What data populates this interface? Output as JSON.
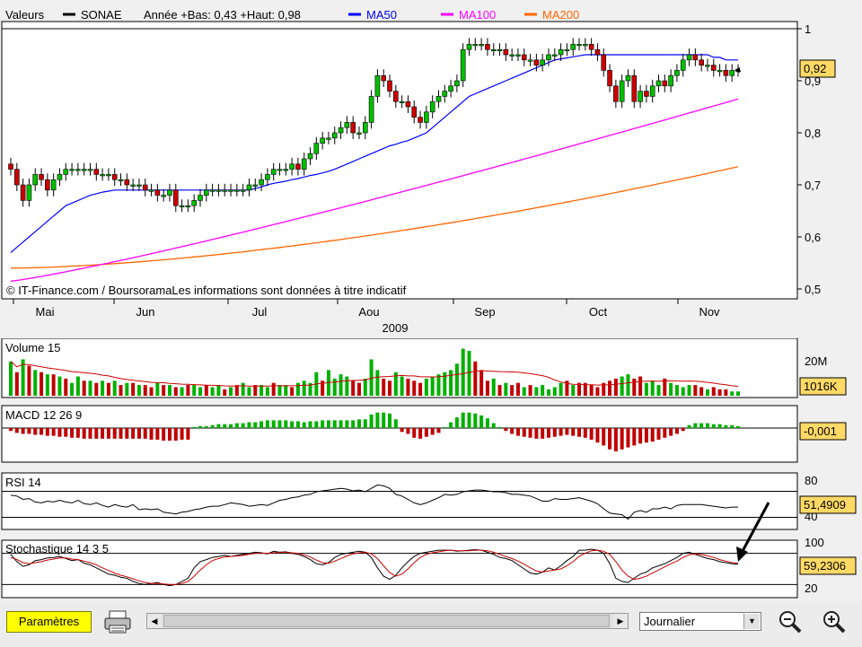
{
  "colors": {
    "price": "#000000",
    "ma50": "#0000ff",
    "ma100": "#ff00ff",
    "ma200": "#ff6600",
    "up_volume": "#00b000",
    "down_volume": "#c00000",
    "label_bg": "#ffd966"
  },
  "toolbar": {
    "params_label": "Paramètres",
    "period_value": "Journalier",
    "print_icon": "printer-icon",
    "zoom_out_icon": "zoom-out-icon",
    "zoom_in_icon": "zoom-in-icon",
    "scroll_left_icon": "arrow-left-icon",
    "scroll_right_icon": "arrow-right-icon"
  },
  "chart_data": [
    {
      "type": "candlestick",
      "title": "Valeurs",
      "legend": [
        {
          "name": "SONAE",
          "color": "#000000"
        },
        {
          "name": "Année +Bas: 0,43 +Haut: 0,98",
          "color": "#000000"
        },
        {
          "name": "MA50",
          "color": "#0000ff"
        },
        {
          "name": "MA100",
          "color": "#ff00ff"
        },
        {
          "name": "MA200",
          "color": "#ff6600"
        }
      ],
      "ylim": [
        0.5,
        1.0
      ],
      "yticks": [
        "0,5",
        "0,6",
        "0,7",
        "0,8",
        "0,9",
        "1"
      ],
      "xticks": [
        "Mai",
        "Jun",
        "Jul",
        "Aou",
        "Sep",
        "Oct",
        "Nov"
      ],
      "year_label": "2009",
      "last_label": "0,92",
      "watermark": "© IT-Finance.com / BoursoramaLes informations sont données à titre indicatif",
      "close": [
        0.73,
        0.7,
        0.67,
        0.7,
        0.72,
        0.71,
        0.69,
        0.71,
        0.72,
        0.73,
        0.73,
        0.73,
        0.73,
        0.73,
        0.72,
        0.72,
        0.72,
        0.71,
        0.71,
        0.7,
        0.7,
        0.7,
        0.69,
        0.69,
        0.68,
        0.68,
        0.69,
        0.66,
        0.66,
        0.66,
        0.67,
        0.68,
        0.69,
        0.69,
        0.69,
        0.69,
        0.69,
        0.69,
        0.69,
        0.7,
        0.7,
        0.71,
        0.72,
        0.73,
        0.73,
        0.73,
        0.74,
        0.73,
        0.75,
        0.76,
        0.78,
        0.79,
        0.79,
        0.8,
        0.81,
        0.82,
        0.8,
        0.8,
        0.82,
        0.87,
        0.91,
        0.9,
        0.88,
        0.86,
        0.86,
        0.85,
        0.83,
        0.82,
        0.84,
        0.86,
        0.87,
        0.88,
        0.89,
        0.9,
        0.96,
        0.97,
        0.97,
        0.97,
        0.96,
        0.96,
        0.96,
        0.95,
        0.95,
        0.95,
        0.94,
        0.94,
        0.93,
        0.94,
        0.95,
        0.95,
        0.96,
        0.96,
        0.97,
        0.97,
        0.97,
        0.96,
        0.95,
        0.92,
        0.89,
        0.86,
        0.9,
        0.91,
        0.86,
        0.88,
        0.87,
        0.89,
        0.9,
        0.89,
        0.91,
        0.92,
        0.94,
        0.95,
        0.94,
        0.93,
        0.93,
        0.92,
        0.92,
        0.91,
        0.92,
        0.92
      ],
      "ma50": [
        0.57,
        0.58,
        0.59,
        0.6,
        0.61,
        0.62,
        0.63,
        0.64,
        0.65,
        0.66,
        0.665,
        0.67,
        0.675,
        0.68,
        0.683,
        0.686,
        0.688,
        0.69,
        0.69,
        0.69,
        0.69,
        0.69,
        0.69,
        0.69,
        0.69,
        0.69,
        0.69,
        0.69,
        0.69,
        0.69,
        0.69,
        0.69,
        0.69,
        0.69,
        0.69,
        0.69,
        0.69,
        0.69,
        0.69,
        0.69,
        0.693,
        0.696,
        0.7,
        0.703,
        0.705,
        0.707,
        0.71,
        0.712,
        0.715,
        0.718,
        0.72,
        0.723,
        0.726,
        0.73,
        0.735,
        0.74,
        0.745,
        0.75,
        0.755,
        0.76,
        0.765,
        0.77,
        0.775,
        0.778,
        0.782,
        0.785,
        0.79,
        0.795,
        0.8,
        0.81,
        0.82,
        0.83,
        0.84,
        0.85,
        0.86,
        0.87,
        0.875,
        0.88,
        0.885,
        0.89,
        0.895,
        0.9,
        0.905,
        0.91,
        0.915,
        0.92,
        0.925,
        0.93,
        0.935,
        0.94,
        0.942,
        0.944,
        0.946,
        0.948,
        0.95,
        0.95,
        0.95,
        0.95,
        0.95,
        0.95,
        0.95,
        0.95,
        0.95,
        0.95,
        0.95,
        0.95,
        0.95,
        0.95,
        0.95,
        0.95,
        0.95,
        0.95,
        0.95,
        0.95,
        0.95,
        0.945,
        0.945,
        0.94,
        0.94,
        0.94
      ],
      "ma100_range": [
        0.515,
        0.865
      ],
      "ma200_range": [
        0.54,
        0.735
      ]
    },
    {
      "type": "bar",
      "title": "Volume 15",
      "ticks": [
        "20M"
      ],
      "last_label": "1016K",
      "values": [
        16,
        11,
        17,
        14,
        12,
        11,
        10,
        10,
        9,
        8,
        6,
        9,
        7,
        7,
        6,
        7,
        6,
        7,
        5,
        6,
        6,
        5,
        5,
        4,
        6,
        5,
        5,
        4,
        4,
        5,
        5,
        4,
        5,
        4,
        5,
        3,
        4,
        5,
        6,
        4,
        5,
        5,
        4,
        6,
        5,
        5,
        4,
        6,
        7,
        6,
        11,
        7,
        12,
        8,
        10,
        9,
        7,
        6,
        8,
        17,
        12,
        8,
        7,
        11,
        9,
        8,
        7,
        6,
        8,
        9,
        10,
        11,
        12,
        15,
        22,
        21,
        16,
        12,
        7,
        8,
        5,
        6,
        5,
        6,
        4,
        5,
        4,
        5,
        3,
        4,
        6,
        7,
        5,
        6,
        6,
        5,
        4,
        6,
        7,
        8,
        9,
        10,
        8,
        9,
        6,
        7,
        5,
        8,
        6,
        5,
        4,
        5,
        5,
        4,
        3,
        4,
        3,
        3,
        2,
        2
      ],
      "up": [
        1,
        0,
        1,
        0,
        1,
        0,
        1,
        0,
        1,
        0,
        1,
        1,
        0,
        1,
        0,
        1,
        0,
        1,
        0,
        1,
        0,
        1,
        0,
        0,
        1,
        0,
        1,
        0,
        1,
        0,
        1,
        1,
        0,
        1,
        1,
        0,
        1,
        0,
        1,
        1,
        0,
        1,
        1,
        0,
        1,
        1,
        0,
        1,
        1,
        1,
        1,
        0,
        1,
        1,
        1,
        1,
        0,
        0,
        1,
        1,
        1,
        0,
        0,
        1,
        1,
        0,
        0,
        0,
        1,
        1,
        1,
        1,
        1,
        1,
        1,
        1,
        0,
        0,
        0,
        1,
        0,
        1,
        0,
        0,
        1,
        0,
        1,
        1,
        1,
        1,
        1,
        0,
        1,
        0,
        0,
        0,
        0,
        0,
        0,
        0,
        1,
        1,
        0,
        0,
        1,
        1,
        1,
        0,
        1,
        1,
        1,
        1,
        0,
        0,
        1,
        0,
        0,
        0,
        1,
        1
      ]
    },
    {
      "type": "bar",
      "title": "MACD 12 26 9",
      "last_label": "-0,001",
      "values": [
        -0.003,
        -0.005,
        -0.006,
        -0.006,
        -0.007,
        -0.007,
        -0.008,
        -0.008,
        -0.009,
        -0.009,
        -0.01,
        -0.01,
        -0.011,
        -0.011,
        -0.011,
        -0.011,
        -0.011,
        -0.011,
        -0.011,
        -0.011,
        -0.011,
        -0.011,
        -0.011,
        -0.012,
        -0.012,
        -0.013,
        -0.013,
        -0.013,
        -0.012,
        -0.012,
        0.001,
        0.002,
        0.002,
        0.003,
        0.004,
        0.004,
        0.004,
        0.005,
        0.005,
        0.006,
        0.006,
        0.007,
        0.008,
        0.008,
        0.008,
        0.008,
        0.007,
        0.007,
        0.006,
        0.007,
        0.007,
        0.008,
        0.008,
        0.008,
        0.008,
        0.008,
        0.008,
        0.009,
        0.009,
        0.014,
        0.016,
        0.016,
        0.015,
        0.009,
        -0.004,
        -0.006,
        -0.01,
        -0.011,
        -0.009,
        -0.007,
        -0.005,
        0.001,
        0.006,
        0.011,
        0.016,
        0.016,
        0.015,
        0.013,
        0.01,
        0.005,
        0.001,
        -0.003,
        -0.006,
        -0.008,
        -0.009,
        -0.01,
        -0.011,
        -0.011,
        -0.01,
        -0.009,
        -0.008,
        -0.007,
        -0.008,
        -0.009,
        -0.01,
        -0.012,
        -0.015,
        -0.018,
        -0.022,
        -0.024,
        -0.022,
        -0.02,
        -0.018,
        -0.016,
        -0.015,
        -0.014,
        -0.012,
        -0.01,
        -0.008,
        -0.006,
        -0.003,
        0.003,
        0.005,
        0.005,
        0.005,
        0.004,
        0.004,
        0.003,
        0.003,
        0.002
      ]
    },
    {
      "type": "line",
      "title": "RSI 14",
      "ylim": [
        30,
        90
      ],
      "ticks": [
        "80",
        "40"
      ],
      "last_label": "51,4909",
      "values": [
        66,
        65,
        61,
        62,
        58,
        57,
        59,
        58,
        60,
        58,
        57,
        60,
        56,
        55,
        57,
        54,
        52,
        55,
        53,
        52,
        55,
        49,
        50,
        49,
        50,
        46,
        45,
        44,
        46,
        47,
        49,
        50,
        52,
        53,
        53,
        55,
        57,
        56,
        55,
        53,
        54,
        55,
        54,
        57,
        60,
        61,
        63,
        64,
        66,
        67,
        70,
        71,
        72,
        73,
        74,
        73,
        71,
        72,
        70,
        74,
        78,
        77,
        74,
        67,
        65,
        61,
        57,
        55,
        57,
        60,
        63,
        67,
        66,
        67,
        70,
        71,
        72,
        72,
        71,
        70,
        70,
        69,
        67,
        67,
        66,
        65,
        62,
        59,
        59,
        62,
        61,
        61,
        62,
        63,
        61,
        59,
        56,
        50,
        45,
        44,
        43,
        38,
        46,
        48,
        46,
        50,
        50,
        52,
        50,
        54,
        55,
        55,
        55,
        55,
        54,
        53,
        52,
        51,
        52,
        52
      ]
    },
    {
      "type": "line",
      "title": "Stochastique 14 3 5",
      "ylim": [
        0,
        100
      ],
      "ticks": [
        "100",
        "20"
      ],
      "last_label": "59,2306",
      "series": [
        {
          "name": "%K",
          "color": "#000000",
          "values": [
            78,
            64,
            55,
            58,
            66,
            68,
            71,
            72,
            74,
            70,
            66,
            68,
            61,
            58,
            52,
            46,
            40,
            38,
            34,
            32,
            26,
            22,
            20,
            22,
            24,
            20,
            18,
            20,
            26,
            32,
            52,
            64,
            68,
            72,
            74,
            76,
            74,
            76,
            78,
            80,
            82,
            81,
            79,
            84,
            82,
            83,
            80,
            78,
            74,
            68,
            60,
            58,
            62,
            72,
            78,
            80,
            82,
            84,
            82,
            72,
            52,
            36,
            30,
            38,
            52,
            64,
            74,
            80,
            82,
            84,
            86,
            86,
            86,
            84,
            85,
            86,
            87,
            86,
            82,
            78,
            72,
            70,
            66,
            58,
            50,
            42,
            40,
            44,
            52,
            48,
            56,
            66,
            74,
            86,
            86,
            88,
            86,
            80,
            60,
            32,
            26,
            24,
            32,
            40,
            44,
            52,
            56,
            60,
            66,
            72,
            80,
            82,
            78,
            74,
            70,
            68,
            64,
            62,
            60,
            59
          ]
        },
        {
          "name": "%D",
          "color": "#cc0000",
          "values": [
            72,
            68,
            62,
            60,
            62,
            64,
            67,
            69,
            71,
            71,
            69,
            68,
            65,
            62,
            58,
            52,
            47,
            42,
            38,
            35,
            31,
            27,
            24,
            22,
            22,
            21,
            20,
            20,
            22,
            26,
            36,
            48,
            58,
            66,
            70,
            73,
            74,
            75,
            76,
            78,
            80,
            80,
            80,
            81,
            82,
            82,
            81,
            80,
            77,
            73,
            67,
            62,
            61,
            65,
            70,
            75,
            79,
            81,
            82,
            79,
            70,
            56,
            43,
            36,
            40,
            50,
            62,
            72,
            78,
            81,
            83,
            85,
            86,
            85,
            85,
            85,
            86,
            86,
            85,
            82,
            78,
            74,
            70,
            65,
            59,
            52,
            46,
            44,
            46,
            48,
            50,
            56,
            64,
            74,
            80,
            85,
            86,
            84,
            78,
            64,
            48,
            36,
            30,
            32,
            36,
            42,
            48,
            54,
            60,
            65,
            72,
            77,
            79,
            78,
            75,
            72,
            68,
            65,
            62,
            61
          ]
        }
      ]
    }
  ]
}
